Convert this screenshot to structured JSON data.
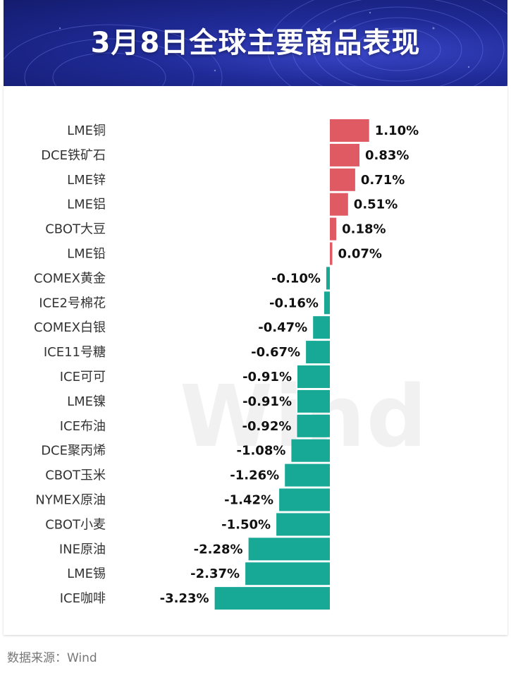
{
  "header": {
    "title": "3月8日全球主要商品表现"
  },
  "watermark": "Wind",
  "source": "数据来源：Wind",
  "colors": {
    "positive": "#e05a63",
    "negative": "#17a996",
    "label": "#333333",
    "value": "#111111"
  },
  "chart_data": {
    "type": "bar",
    "orientation": "horizontal",
    "title": "3月8日全球主要商品表现",
    "categories": [
      "LME铜",
      "DCE铁矿石",
      "LME锌",
      "LME铝",
      "CBOT大豆",
      "LME铅",
      "COMEX黄金",
      "ICE2号棉花",
      "COMEX白银",
      "ICE11号糖",
      "ICE可可",
      "LME镍",
      "ICE布油",
      "DCE聚丙烯",
      "CBOT玉米",
      "NYMEX原油",
      "CBOT小麦",
      "INE原油",
      "LME锡",
      "ICE咖啡"
    ],
    "values": [
      1.1,
      0.83,
      0.71,
      0.51,
      0.18,
      0.07,
      -0.1,
      -0.16,
      -0.47,
      -0.67,
      -0.91,
      -0.91,
      -0.92,
      -1.08,
      -1.26,
      -1.42,
      -1.5,
      -2.28,
      -2.37,
      -3.23
    ],
    "labels": [
      "1.10%",
      "0.83%",
      "0.71%",
      "0.51%",
      "0.18%",
      "0.07%",
      "-0.10%",
      "-0.16%",
      "-0.47%",
      "-0.67%",
      "-0.91%",
      "-0.91%",
      "-0.92%",
      "-1.08%",
      "-1.26%",
      "-1.42%",
      "-1.50%",
      "-2.28%",
      "-2.37%",
      "-3.23%"
    ],
    "unit": "%",
    "grid": false,
    "legend": "none"
  }
}
